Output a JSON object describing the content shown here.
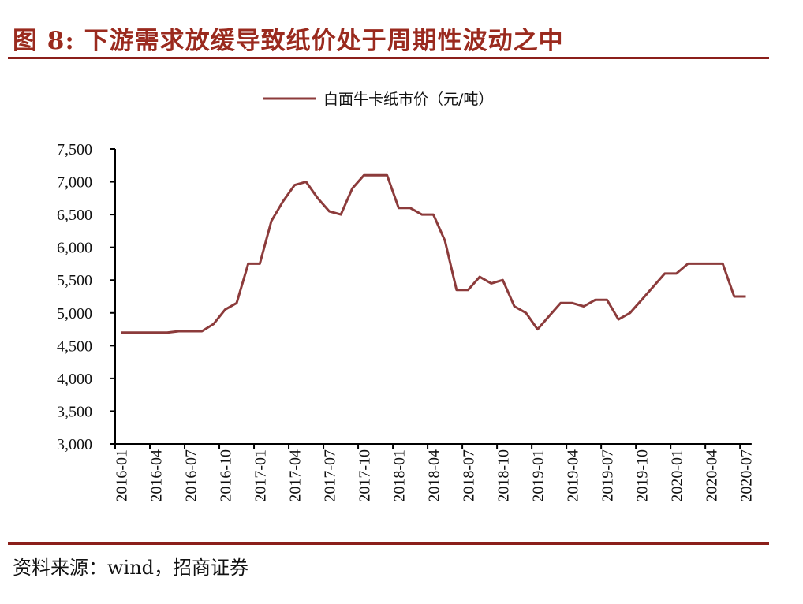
{
  "title": "图 8:  下游需求放缓导致纸价处于周期性波动之中",
  "source": "资料来源：wind，招商证券",
  "colors": {
    "line": "#8c3b3b",
    "title": "#9a2a1e",
    "rule": "#8b1f1a"
  },
  "chart_data": {
    "type": "line",
    "title": "",
    "xlabel": "",
    "ylabel": "",
    "ylim": [
      3000,
      7500
    ],
    "yticks": [
      "3,000",
      "3,500",
      "4,000",
      "4,500",
      "5,000",
      "5,500",
      "6,000",
      "6,500",
      "7,000",
      "7,500"
    ],
    "ytick_values": [
      3000,
      3500,
      4000,
      4500,
      5000,
      5500,
      6000,
      6500,
      7000,
      7500
    ],
    "xtick_labels": [
      "2016-01",
      "2016-04",
      "2016-07",
      "2016-10",
      "2017-01",
      "2017-04",
      "2017-07",
      "2017-10",
      "2018-01",
      "2018-04",
      "2018-07",
      "2018-10",
      "2019-01",
      "2019-04",
      "2019-07",
      "2019-10",
      "2020-01",
      "2020-04",
      "2020-07"
    ],
    "legend_position": "top-center",
    "grid": false,
    "x_start": "2016-01",
    "x_end": "2020-07",
    "series": [
      {
        "name": "白面牛卡纸市价（元/吨）",
        "values": [
          4700,
          4700,
          4700,
          4700,
          4700,
          4720,
          4720,
          4720,
          4830,
          5050,
          5150,
          5750,
          5750,
          6400,
          6700,
          6950,
          7000,
          6750,
          6550,
          6500,
          6900,
          7100,
          7100,
          7100,
          6600,
          6600,
          6500,
          6500,
          6100,
          5350,
          5350,
          5550,
          5450,
          5500,
          5100,
          5000,
          4750,
          4950,
          5150,
          5150,
          5100,
          5200,
          5200,
          4900,
          5000,
          5200,
          5400,
          5600,
          5600,
          5750,
          5750,
          5750,
          5750,
          5250,
          5250
        ]
      }
    ]
  }
}
